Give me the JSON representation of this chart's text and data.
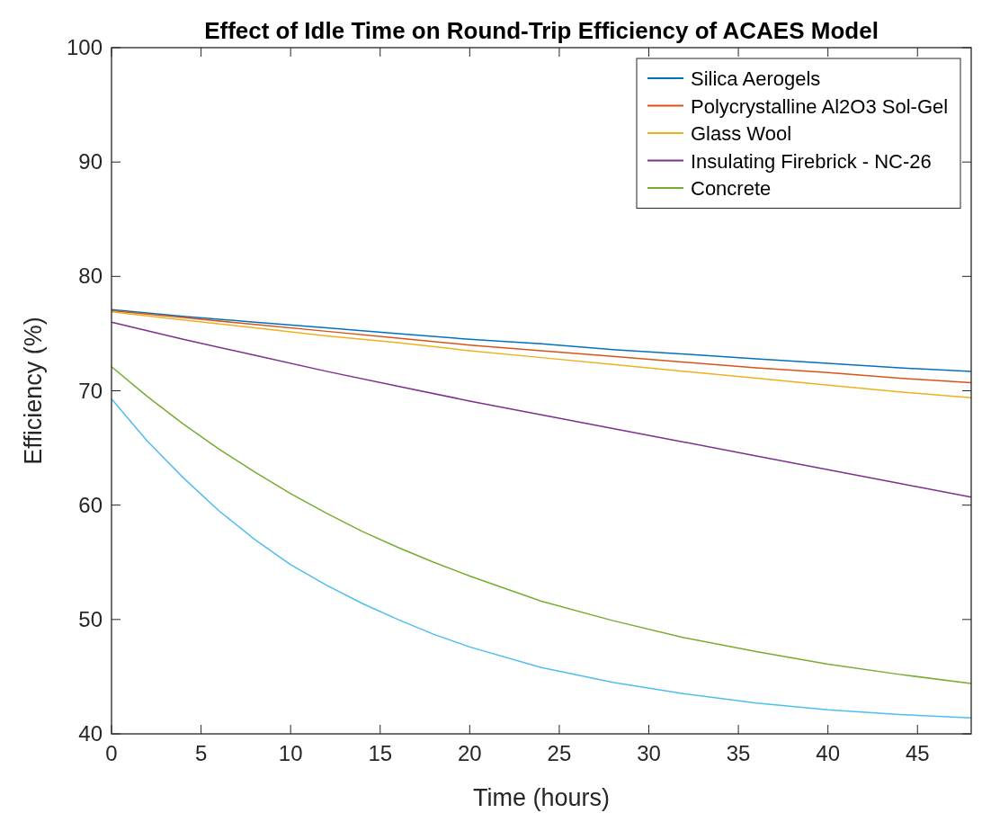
{
  "chart_data": {
    "type": "line",
    "title": "Effect of Idle Time on Round-Trip Efficiency of ACAES Model",
    "xlabel": "Time (hours)",
    "ylabel": "Efficiency (%)",
    "xlim": [
      0,
      48
    ],
    "xticks": [
      0,
      5,
      10,
      15,
      20,
      25,
      30,
      35,
      40,
      45
    ],
    "ylim": [
      40,
      100
    ],
    "yticks": [
      40,
      50,
      60,
      70,
      80,
      90,
      100
    ],
    "grid": false,
    "legend": "top right",
    "line_style": "solid",
    "marker": "none",
    "series": [
      {
        "name": "Silica Aerogels",
        "color": "#0072bd",
        "x": [
          0,
          4,
          8,
          12,
          16,
          20,
          24,
          28,
          32,
          36,
          40,
          44,
          48
        ],
        "values": [
          77.1,
          76.5,
          76.0,
          75.5,
          75.0,
          74.5,
          74.1,
          73.6,
          73.2,
          72.8,
          72.4,
          72.0,
          71.7
        ]
      },
      {
        "name": "Polycrystalline Al2O3 Sol-Gel",
        "color": "#d95319",
        "x": [
          0,
          4,
          8,
          12,
          16,
          20,
          24,
          28,
          32,
          36,
          40,
          44,
          48
        ],
        "values": [
          77.0,
          76.4,
          75.8,
          75.2,
          74.6,
          74.0,
          73.5,
          73.0,
          72.5,
          72.0,
          71.6,
          71.1,
          70.7
        ]
      },
      {
        "name": "Glass Wool",
        "color": "#edb120",
        "x": [
          0,
          4,
          8,
          12,
          16,
          20,
          24,
          28,
          32,
          36,
          40,
          44,
          48
        ],
        "values": [
          76.9,
          76.2,
          75.5,
          74.8,
          74.2,
          73.5,
          72.9,
          72.3,
          71.7,
          71.1,
          70.5,
          69.9,
          69.4
        ]
      },
      {
        "name": "Insulating Firebrick - NC-26",
        "color": "#7e2f8e",
        "x": [
          0,
          4,
          8,
          12,
          16,
          20,
          24,
          28,
          32,
          36,
          40,
          44,
          48
        ],
        "values": [
          76.0,
          74.5,
          73.1,
          71.7,
          70.4,
          69.1,
          67.9,
          66.7,
          65.5,
          64.3,
          63.1,
          61.9,
          60.7
        ]
      },
      {
        "name": "Concrete",
        "color": "#77ac30",
        "x": [
          0,
          2,
          4,
          6,
          8,
          10,
          12,
          14,
          16,
          18,
          20,
          24,
          28,
          32,
          36,
          40,
          44,
          48
        ],
        "values": [
          72.1,
          69.5,
          67.1,
          64.9,
          62.9,
          61.0,
          59.3,
          57.7,
          56.3,
          55.0,
          53.8,
          51.6,
          49.9,
          48.4,
          47.2,
          46.1,
          45.2,
          44.4
        ]
      },
      {
        "color": "#4dbeee",
        "x": [
          0,
          2,
          4,
          6,
          8,
          10,
          12,
          14,
          16,
          18,
          20,
          24,
          28,
          32,
          36,
          40,
          44,
          48
        ],
        "values": [
          69.3,
          65.6,
          62.4,
          59.5,
          57.0,
          54.8,
          53.0,
          51.4,
          50.0,
          48.7,
          47.6,
          45.8,
          44.5,
          43.5,
          42.7,
          42.1,
          41.7,
          41.4
        ]
      }
    ]
  }
}
